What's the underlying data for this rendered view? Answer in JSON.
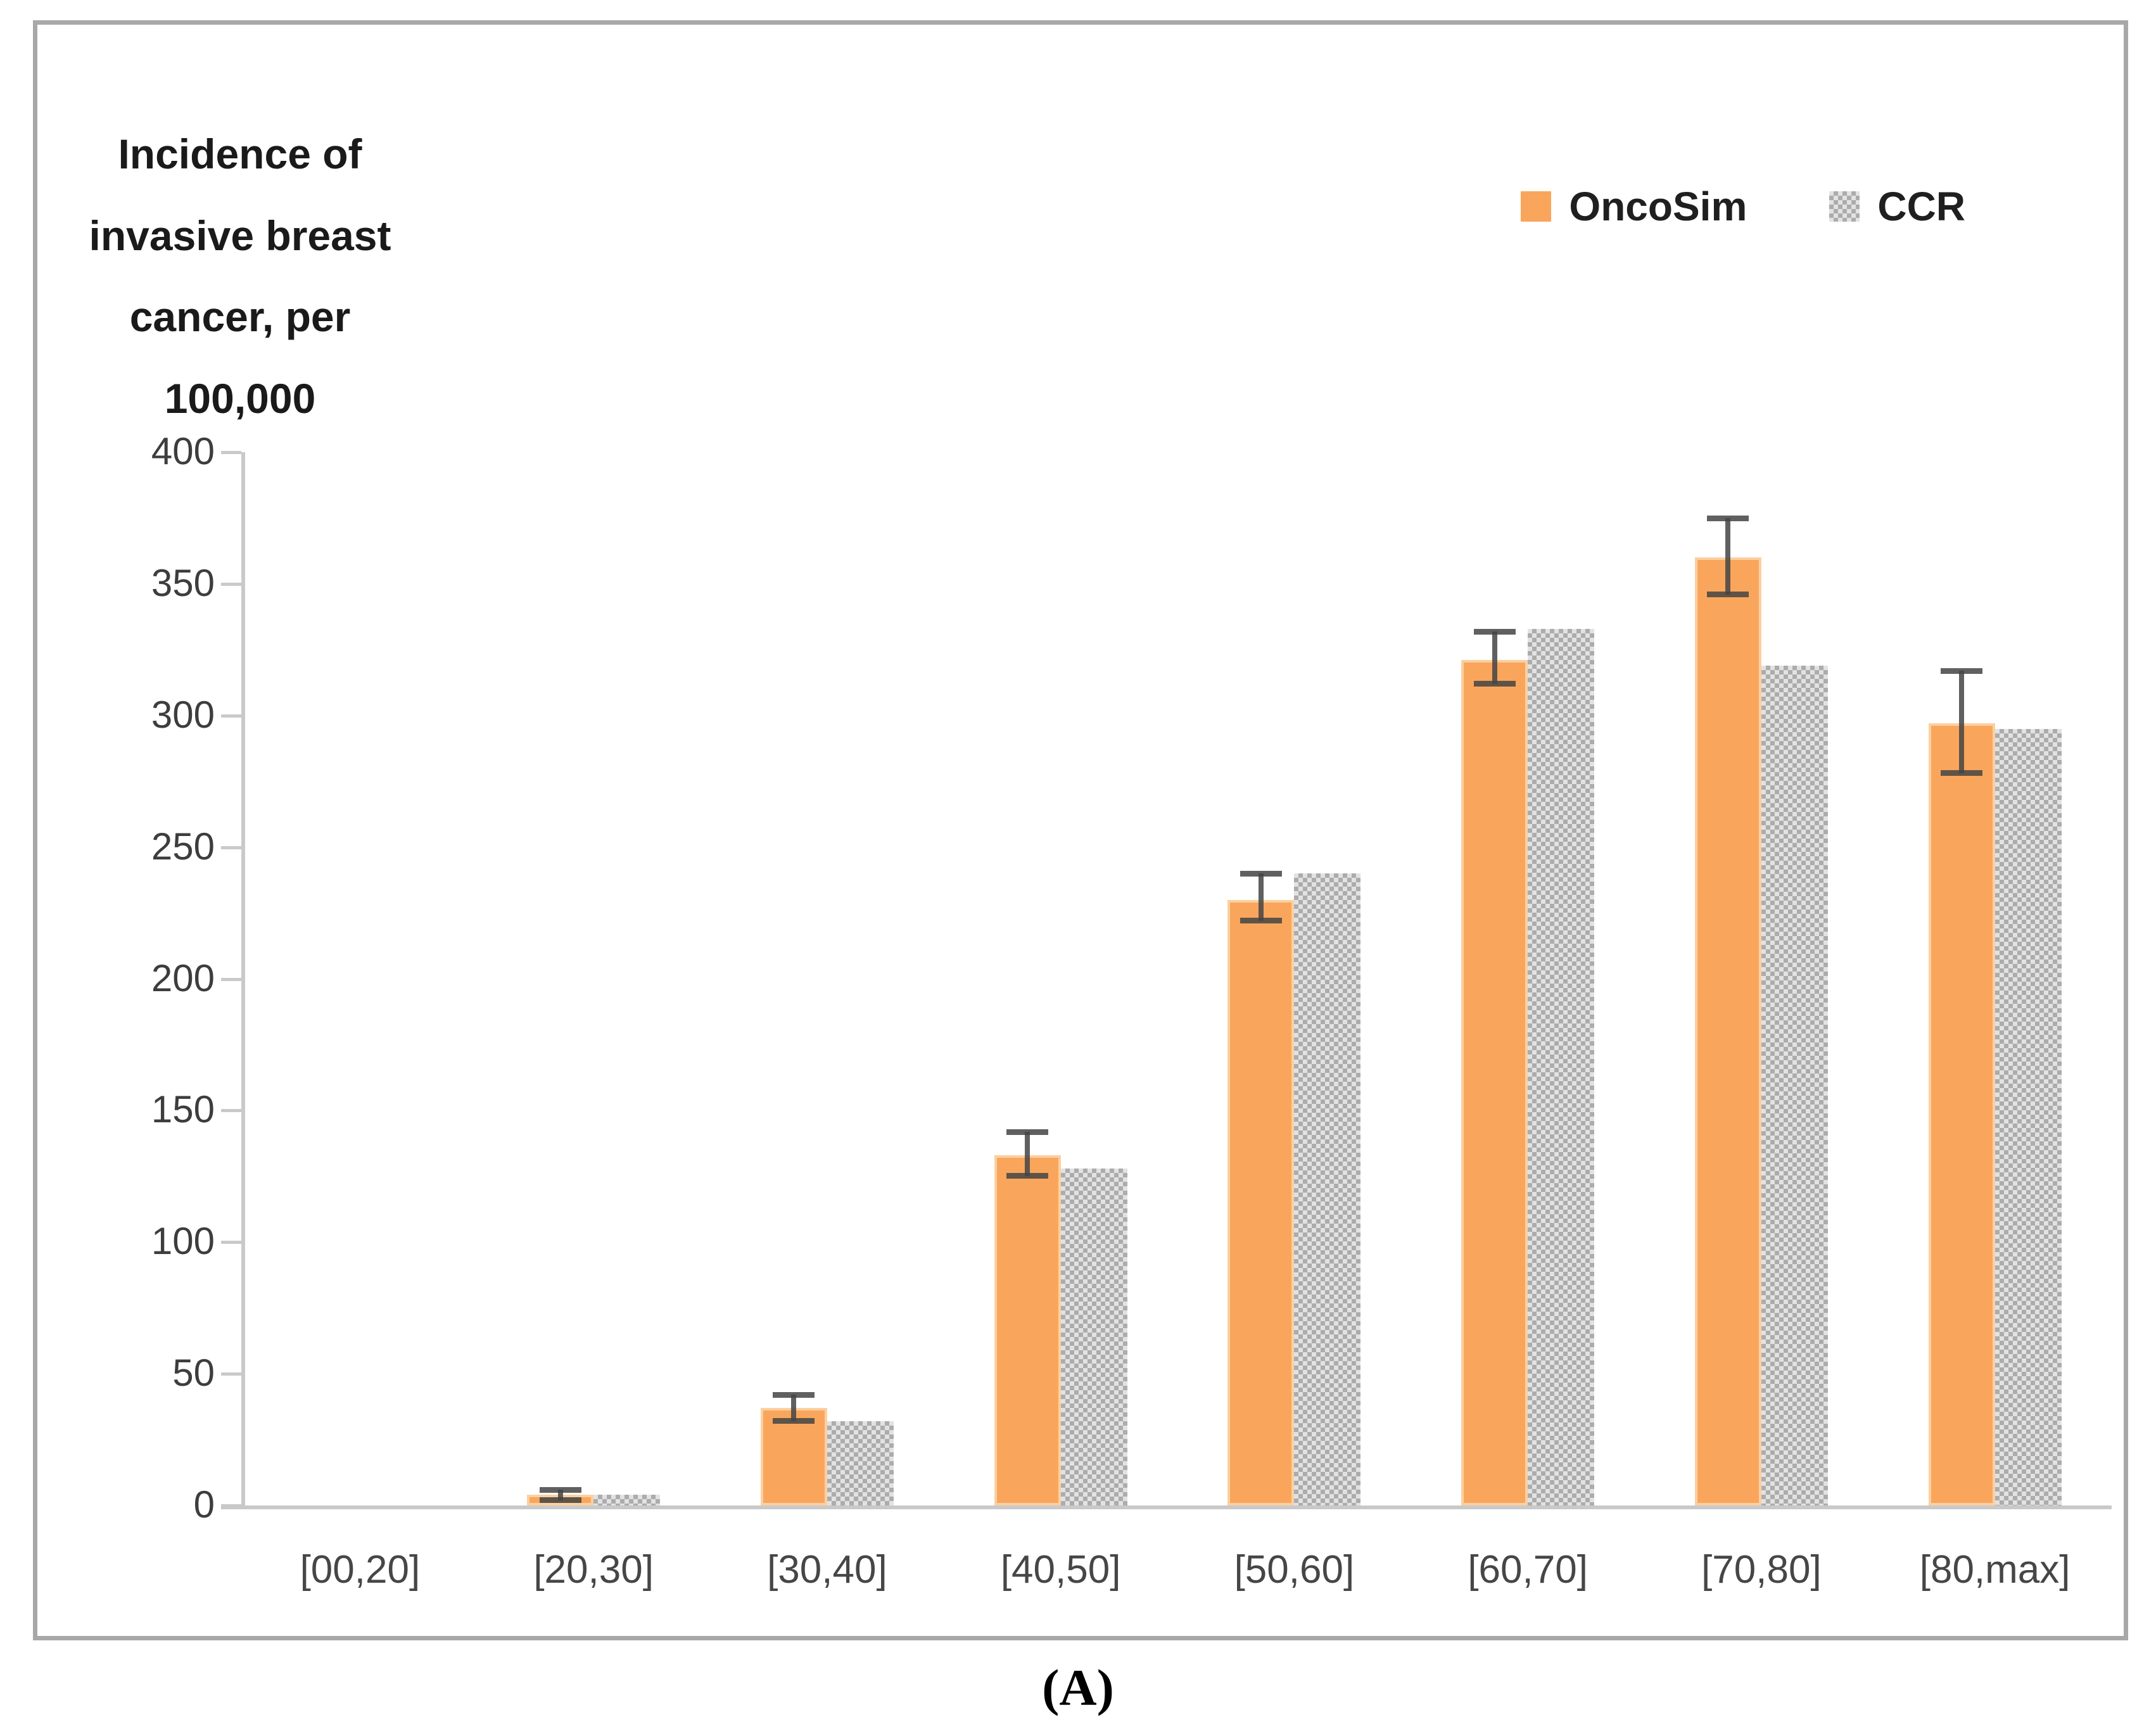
{
  "figure": {
    "caption": "(A)"
  },
  "y_axis_title": "Incidence of\ninvasive breast\ncancer, per\n100,000",
  "legend": {
    "position": "top-right",
    "items": [
      {
        "label": "OncoSim",
        "swatch": "orange-solid"
      },
      {
        "label": "CCR",
        "swatch": "gray-checker-pattern"
      }
    ]
  },
  "chart_data": {
    "type": "bar",
    "title": "Incidence of invasive breast cancer, per 100,000",
    "categories": [
      "[00,20]",
      "[20,30]",
      "[30,40]",
      "[40,50]",
      "[50,60]",
      "[60,70]",
      "[70,80]",
      "[80,max]"
    ],
    "series": [
      {
        "name": "OncoSim",
        "values": [
          0,
          4,
          37,
          133,
          230,
          321,
          360,
          297
        ],
        "error_plus": [
          0,
          2,
          5,
          9,
          10,
          11,
          15,
          20
        ],
        "error_minus": [
          0,
          2,
          5,
          8,
          8,
          9,
          14,
          19
        ],
        "color": "#f9a65c"
      },
      {
        "name": "CCR",
        "values": [
          0,
          4,
          32,
          128,
          240,
          333,
          319,
          295
        ],
        "color": "#acacac",
        "pattern": "checker"
      }
    ],
    "xlabel": "",
    "ylabel": "Incidence of invasive breast cancer, per 100,000",
    "ylim": [
      0,
      400
    ],
    "ytick_step": 50,
    "grid": false,
    "legend_position": "top-right"
  },
  "colors": {
    "oncosim_fill": "#f9a65c",
    "oncosim_edge": "#fbd0a1",
    "ccr_gray": "#acacac",
    "ccr_light": "#e2e2e2",
    "axis": "#c9c9c9",
    "frame_border": "#a8a8a8",
    "tick_text": "#3d3d3d",
    "error_bar": "#444444"
  }
}
